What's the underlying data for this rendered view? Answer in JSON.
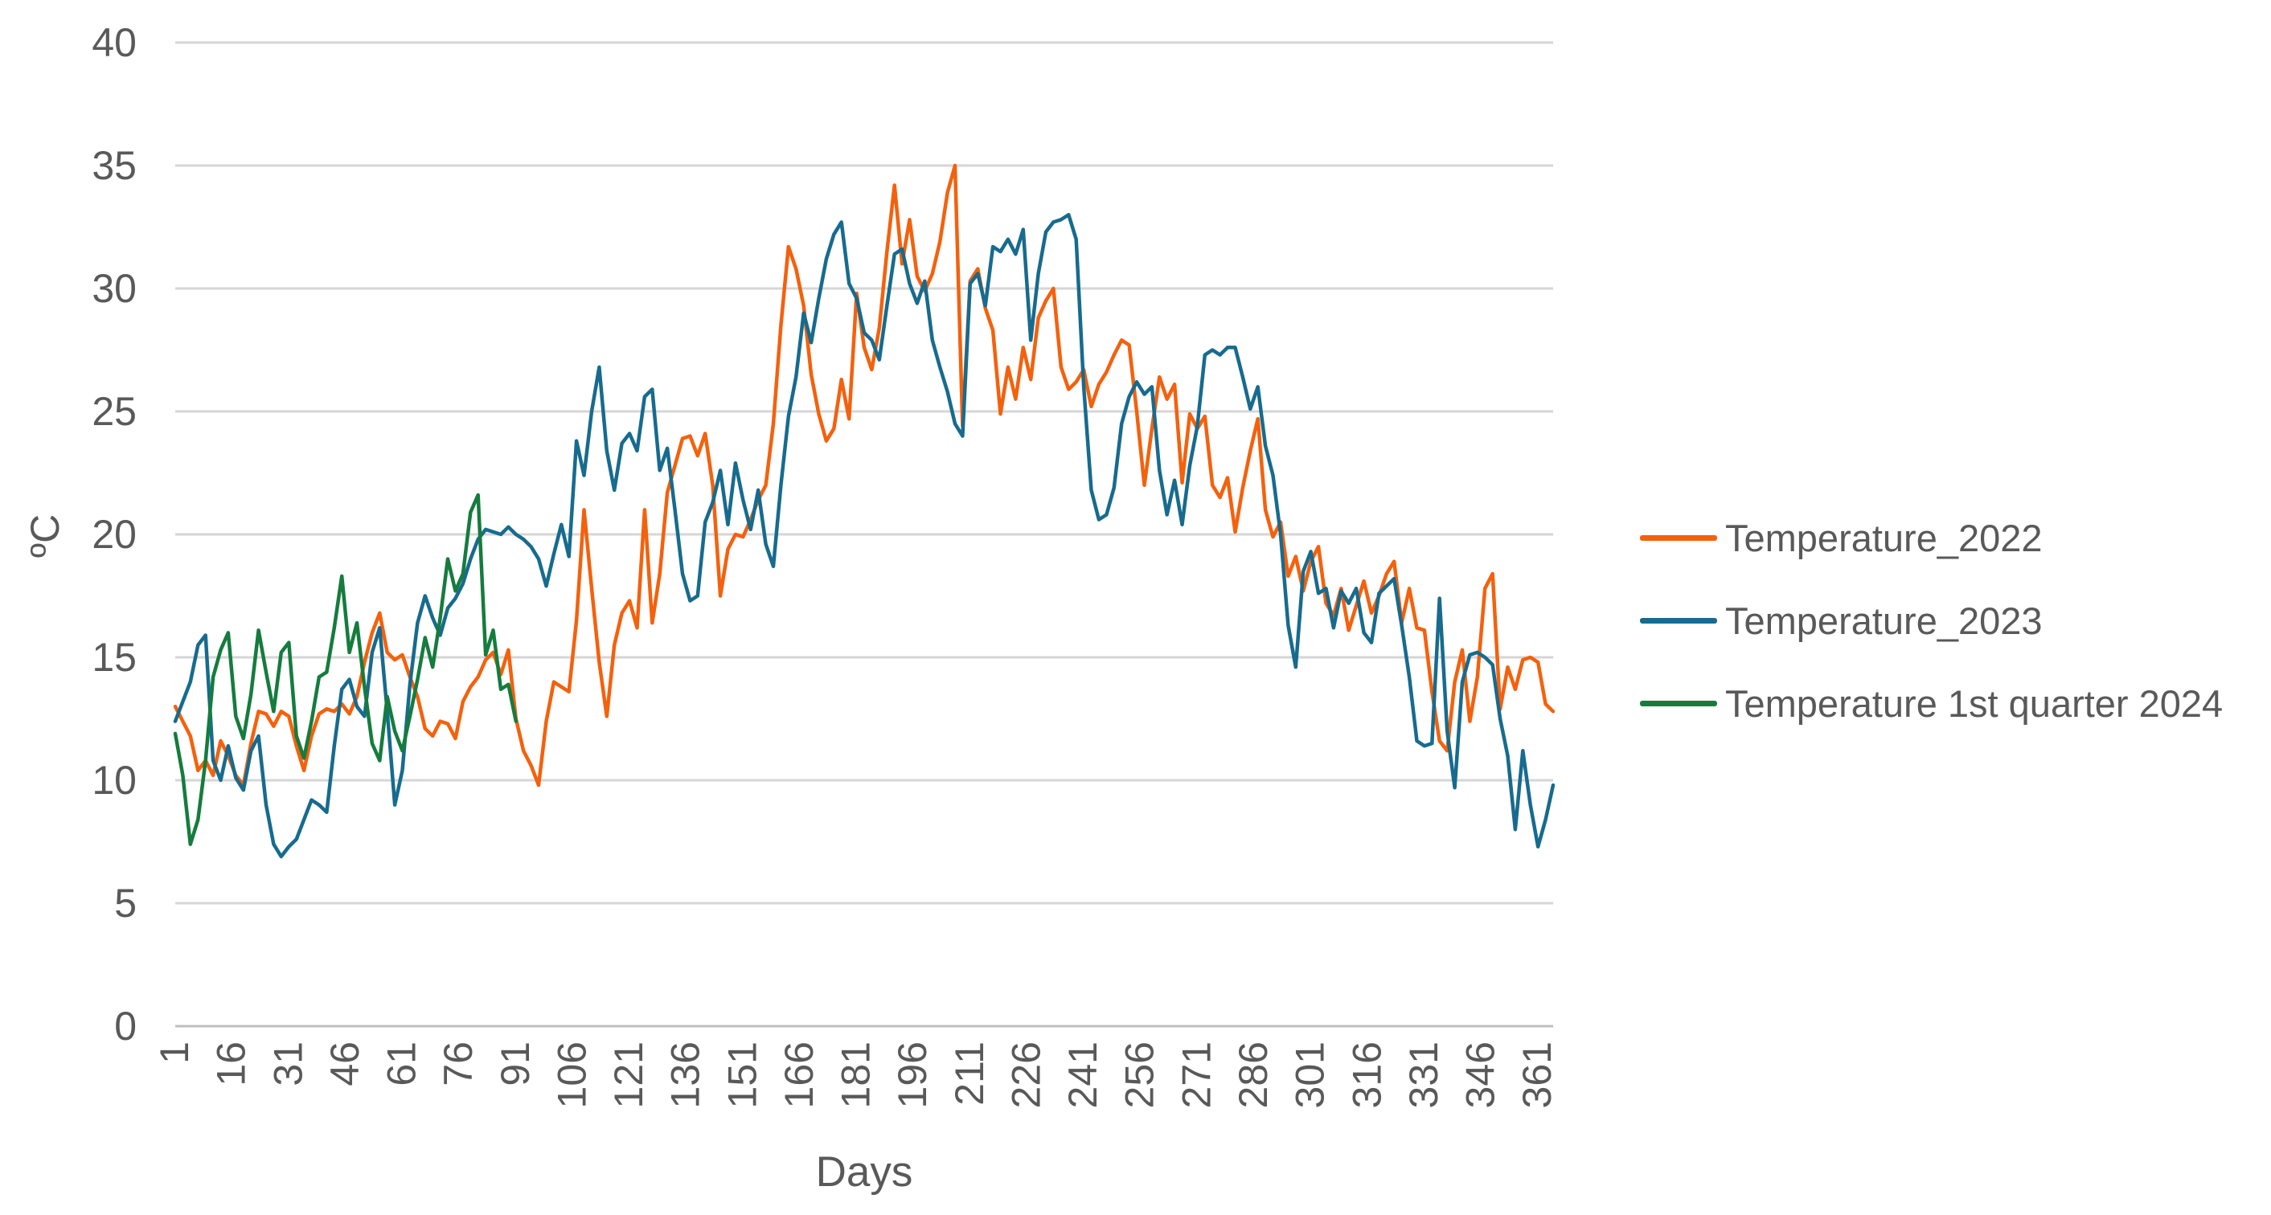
{
  "page": {
    "background": "#ffffff"
  },
  "chart_data": {
    "type": "line",
    "title": "",
    "xlabel": "Days",
    "ylabel": "ºC",
    "ylim": [
      0,
      40
    ],
    "y_tick_step": 5,
    "y_ticks": [
      0,
      5,
      10,
      15,
      20,
      25,
      30,
      35,
      40
    ],
    "x_tick_days": [
      1,
      16,
      31,
      46,
      61,
      76,
      91,
      106,
      121,
      136,
      151,
      166,
      181,
      196,
      211,
      226,
      241,
      256,
      271,
      286,
      301,
      316,
      331,
      346,
      361
    ],
    "x_range_days": [
      1,
      365
    ],
    "grid": "horizontal",
    "legend_position": "right",
    "gridline_color": "#d6d6d6",
    "axis_line_color": "#bfbfbf",
    "text_color": "#595959",
    "sample_step_days": 2,
    "series": [
      {
        "name": "Temperature_2022",
        "color": "#f4610d",
        "start_day": 1,
        "values": [
          13.0,
          12.4,
          11.8,
          10.4,
          10.8,
          10.2,
          11.6,
          11.0,
          10.2,
          9.8,
          11.5,
          12.8,
          12.7,
          12.2,
          12.8,
          12.6,
          11.4,
          10.4,
          11.8,
          12.7,
          12.9,
          12.8,
          13.1,
          12.7,
          13.4,
          14.8,
          16.0,
          16.8,
          15.2,
          14.9,
          15.1,
          14.2,
          13.4,
          12.1,
          11.8,
          12.4,
          12.3,
          11.7,
          13.2,
          13.8,
          14.2,
          14.9,
          15.2,
          14.3,
          15.3,
          12.5,
          11.2,
          10.6,
          9.8,
          12.4,
          14.0,
          13.8,
          13.6,
          16.5,
          21.0,
          17.8,
          14.8,
          12.6,
          15.5,
          16.8,
          17.3,
          16.2,
          21.0,
          16.4,
          18.4,
          21.7,
          22.8,
          23.9,
          24.0,
          23.2,
          24.1,
          22.0,
          17.5,
          19.4,
          20.0,
          19.9,
          20.6,
          21.4,
          22.0,
          24.5,
          28.5,
          31.7,
          30.8,
          29.3,
          26.5,
          24.9,
          23.8,
          24.3,
          26.3,
          24.7,
          29.8,
          27.6,
          26.7,
          28.4,
          31.5,
          34.2,
          31.0,
          32.8,
          30.5,
          29.9,
          30.6,
          31.9,
          33.9,
          35.0,
          24.4,
          30.3,
          30.8,
          29.2,
          28.3,
          24.9,
          26.8,
          25.5,
          27.6,
          26.3,
          28.8,
          29.5,
          30.0,
          26.8,
          25.9,
          26.2,
          26.7,
          25.2,
          26.1,
          26.6,
          27.3,
          27.9,
          27.7,
          25.0,
          22.0,
          24.3,
          26.4,
          25.5,
          26.1,
          22.1,
          24.9,
          24.3,
          24.8,
          22.0,
          21.5,
          22.3,
          20.1,
          21.9,
          23.4,
          24.7,
          21.0,
          19.9,
          20.5,
          18.3,
          19.1,
          17.7,
          18.9,
          19.5,
          17.2,
          16.7,
          17.8,
          16.1,
          17.1,
          18.1,
          16.8,
          17.5,
          18.4,
          18.9,
          16.4,
          17.8,
          16.2,
          16.1,
          13.6,
          11.6,
          11.2,
          14.0,
          15.3,
          12.4,
          14.2,
          17.8,
          18.4,
          12.9,
          14.6,
          13.7,
          14.9,
          15.0,
          14.8,
          13.1,
          12.8
        ]
      },
      {
        "name": "Temperature_2023",
        "color": "#176b8e",
        "start_day": 1,
        "values": [
          12.4,
          13.2,
          14.0,
          15.5,
          15.9,
          10.8,
          10.0,
          11.4,
          10.1,
          9.6,
          11.2,
          11.8,
          9.0,
          7.4,
          6.9,
          7.3,
          7.6,
          8.4,
          9.2,
          9.0,
          8.7,
          11.4,
          13.7,
          14.1,
          13.0,
          12.6,
          15.2,
          16.2,
          12.8,
          9.0,
          10.4,
          13.9,
          16.4,
          17.5,
          16.6,
          15.9,
          17.0,
          17.4,
          18.0,
          19.0,
          19.8,
          20.2,
          20.1,
          20.0,
          20.3,
          20.0,
          19.8,
          19.5,
          19.0,
          17.9,
          19.2,
          20.4,
          19.1,
          23.8,
          22.4,
          25.0,
          26.8,
          23.4,
          21.8,
          23.7,
          24.1,
          23.4,
          25.6,
          25.9,
          22.6,
          23.5,
          21.0,
          18.4,
          17.3,
          17.5,
          20.5,
          21.3,
          22.6,
          20.4,
          22.9,
          21.4,
          20.2,
          21.8,
          19.6,
          18.7,
          22.0,
          24.8,
          26.4,
          29.0,
          27.8,
          29.6,
          31.2,
          32.2,
          32.7,
          30.2,
          29.6,
          28.2,
          27.9,
          27.1,
          29.3,
          31.4,
          31.6,
          30.2,
          29.4,
          30.3,
          27.9,
          26.8,
          25.8,
          24.5,
          24.0,
          30.2,
          30.6,
          29.3,
          31.7,
          31.5,
          32.0,
          31.4,
          32.4,
          27.9,
          30.6,
          32.3,
          32.7,
          32.8,
          33.0,
          32.0,
          26.0,
          21.8,
          20.6,
          20.8,
          21.9,
          24.5,
          25.6,
          26.2,
          25.7,
          26.0,
          22.6,
          20.8,
          22.2,
          20.4,
          22.8,
          24.4,
          27.3,
          27.5,
          27.3,
          27.6,
          27.6,
          26.4,
          25.1,
          26.0,
          23.6,
          22.4,
          20.0,
          16.3,
          14.6,
          18.5,
          19.3,
          17.6,
          17.8,
          16.2,
          17.7,
          17.2,
          17.8,
          16.0,
          15.6,
          17.6,
          17.9,
          18.2,
          16.3,
          14.2,
          11.6,
          11.4,
          11.5,
          17.4,
          12.0,
          9.7,
          14.0,
          15.1,
          15.2,
          15.0,
          14.7,
          12.5,
          11.0,
          8.0,
          11.2,
          9.0,
          7.3,
          8.4,
          9.8
        ]
      },
      {
        "name": "Temperature 1st quarter 2024",
        "color": "#157c3d",
        "start_day": 1,
        "values": [
          11.9,
          10.2,
          7.4,
          8.4,
          10.8,
          14.2,
          15.3,
          16.0,
          12.6,
          11.7,
          13.5,
          16.1,
          14.4,
          12.8,
          15.2,
          15.6,
          11.8,
          10.9,
          12.4,
          14.2,
          14.4,
          16.2,
          18.3,
          15.2,
          16.4,
          13.8,
          11.5,
          10.8,
          13.4,
          12.0,
          11.2,
          12.6,
          14.1,
          15.8,
          14.6,
          16.6,
          19.0,
          17.7,
          18.4,
          20.9,
          21.6,
          15.1,
          16.1,
          13.7,
          13.9,
          12.4
        ]
      }
    ]
  },
  "legend": {
    "items": [
      {
        "label": "Temperature_2022"
      },
      {
        "label": "Temperature_2023"
      },
      {
        "label": "Temperature 1st quarter 2024"
      }
    ]
  },
  "axes": {
    "x_title": "Days",
    "y_title": "ºC"
  }
}
